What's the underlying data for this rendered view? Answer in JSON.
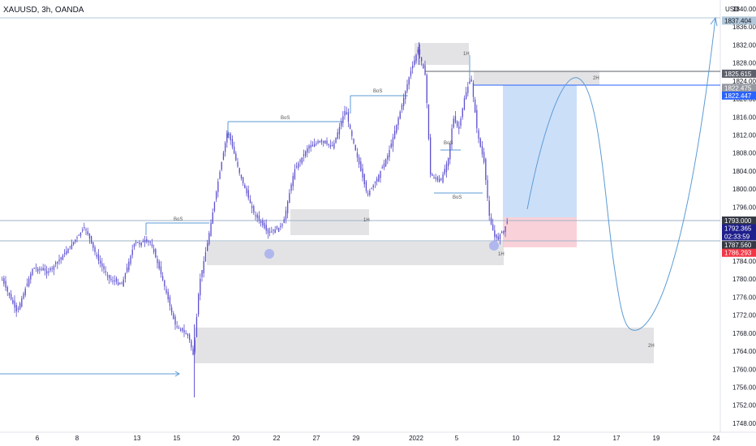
{
  "header": {
    "symbol": "XAUUSD, 3h, OANDA",
    "currency": "USD"
  },
  "chart_data": {
    "type": "candlestick",
    "y_axis": {
      "min": 1746,
      "max": 1840,
      "ticks": [
        "1748.000",
        "1752.000",
        "1756.000",
        "1760.000",
        "1764.000",
        "1768.000",
        "1772.000",
        "1776.000",
        "1780.000",
        "1784.000",
        "1788.000",
        "1792.000",
        "1796.000",
        "1800.000",
        "1804.000",
        "1808.000",
        "1812.000",
        "1816.000",
        "1820.000",
        "1824.000",
        "1828.000",
        "1832.000",
        "1836.000",
        "1840.000"
      ]
    },
    "x_axis": {
      "ticks": [
        "6",
        "8",
        "13",
        "15",
        "20",
        "22",
        "27",
        "29",
        "2022",
        "5",
        "10",
        "12",
        "17",
        "19",
        "24"
      ]
    },
    "price_tags": [
      {
        "value": 1837.404,
        "label": "1837.404",
        "bg": "#b2c7d9",
        "fg": "#131722"
      },
      {
        "value": 1825.615,
        "label": "1825.615",
        "bg": "#5d606b",
        "fg": "#ffffff"
      },
      {
        "value": 1822.475,
        "label": "1822.475",
        "bg": "#9598a1",
        "fg": "#ffffff"
      },
      {
        "value": 1822.447,
        "label": "1822.447",
        "bg": "#2962ff",
        "fg": "#ffffff"
      },
      {
        "value": 1793.0,
        "label": "1793.000",
        "bg": "#363a45",
        "fg": "#ffffff"
      },
      {
        "value": 1792.365,
        "label": "1792.365",
        "bg": "#1e1e8c",
        "fg": "#ffffff"
      },
      {
        "value": 1787.56,
        "label": "1787.560",
        "bg": "#363a45",
        "fg": "#ffffff"
      },
      {
        "value": 1786.293,
        "label": "1786.293",
        "bg": "#f23645",
        "fg": "#ffffff"
      }
    ],
    "countdown": "02:33:59",
    "annotations": [
      "BoS",
      "BoS",
      "BoS",
      "BoS",
      "BoS",
      "1H",
      "1H",
      "1H",
      "2H",
      "2H"
    ],
    "colors": {
      "candle": "#5b4fcf",
      "zone": "#d9d9dc",
      "target": "#bbd4f7",
      "stop": "#f8c5d0",
      "line": "#5b9bd5"
    }
  }
}
